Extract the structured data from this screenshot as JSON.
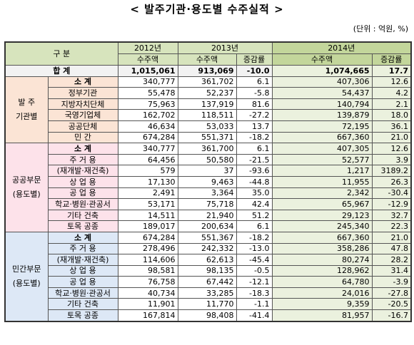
{
  "title": "< 발주기관·용도별 수주실적 >",
  "unit": "(단위 : 억원, %)",
  "header": {
    "division": "구 분",
    "years": [
      "2012년",
      "2013년",
      "2014년"
    ],
    "columns": [
      "수주액",
      "수주액",
      "증감률",
      "수주액",
      "증감률"
    ]
  },
  "total": {
    "label": "합 계",
    "values": [
      "1,015,061",
      "913,069",
      "-10.0",
      "1,074,665",
      "17.7"
    ]
  },
  "groups": [
    {
      "label": [
        "발 주",
        "기관별"
      ],
      "rows": [
        {
          "label": "소 계",
          "values": [
            "340,777",
            "361,702",
            "6.1",
            "407,306",
            "12.6"
          ]
        },
        {
          "label": "정부기관",
          "values": [
            "55,478",
            "52,237",
            "-5.8",
            "54,437",
            "4.2"
          ]
        },
        {
          "label": "지방자치단체",
          "values": [
            "75,963",
            "137,919",
            "81.6",
            "140,794",
            "2.1"
          ]
        },
        {
          "label": "국영기업체",
          "values": [
            "162,702",
            "118,511",
            "-27.2",
            "139,879",
            "18.0"
          ]
        },
        {
          "label": "공공단체",
          "values": [
            "46,634",
            "53,033",
            "13.7",
            "72,195",
            "36.1"
          ]
        },
        {
          "label": "민 간",
          "values": [
            "674,284",
            "551,371",
            "-18.2",
            "667,360",
            "21.0"
          ]
        }
      ]
    },
    {
      "label": [
        "공공부문",
        "(용도별)"
      ],
      "rows": [
        {
          "label": "소 계",
          "values": [
            "340,777",
            "361,700",
            "6.1",
            "407,305",
            "12.6"
          ]
        },
        {
          "label": "주 거 용",
          "values": [
            "64,456",
            "50,580",
            "-21.5",
            "52,577",
            "3.9"
          ]
        },
        {
          "label": "(재개발·재건축)",
          "values": [
            "579",
            "37",
            "-93.6",
            "1,217",
            "3189.2"
          ]
        },
        {
          "label": "상 업 용",
          "values": [
            "17,130",
            "9,463",
            "-44.8",
            "11,955",
            "26.3"
          ]
        },
        {
          "label": "공 업 용",
          "values": [
            "2,491",
            "3,364",
            "35.0",
            "2,342",
            "-30.4"
          ]
        },
        {
          "label": "학교·병원·관공서",
          "values": [
            "53,171",
            "75,718",
            "42.4",
            "65,967",
            "-12.9"
          ]
        },
        {
          "label": "기타 건축",
          "values": [
            "14,511",
            "21,940",
            "51.2",
            "29,123",
            "32.7"
          ]
        },
        {
          "label": "토목 공종",
          "values": [
            "189,017",
            "200,634",
            "6.1",
            "245,340",
            "22.3"
          ]
        }
      ]
    },
    {
      "label": [
        "민간부문",
        "(용도별)"
      ],
      "rows": [
        {
          "label": "소 계",
          "values": [
            "674,284",
            "551,367",
            "-18.2",
            "667,360",
            "21.0"
          ]
        },
        {
          "label": "주 거 용",
          "values": [
            "278,496",
            "242,332",
            "-13.0",
            "358,286",
            "47.8"
          ]
        },
        {
          "label": "(재개발·재건축)",
          "values": [
            "114,606",
            "62,613",
            "-45.4",
            "80,274",
            "28.2"
          ]
        },
        {
          "label": "상 업 용",
          "values": [
            "98,581",
            "98,135",
            "-0.5",
            "128,962",
            "31.4"
          ]
        },
        {
          "label": "공 업 용",
          "values": [
            "76,758",
            "67,442",
            "-12.1",
            "64,780",
            "-3.9"
          ]
        },
        {
          "label": "학교·병원·관공서",
          "values": [
            "40,734",
            "33,285",
            "-18.3",
            "24,016",
            "-27.8"
          ]
        },
        {
          "label": "기타 건축",
          "values": [
            "11,901",
            "11,770",
            "-1.1",
            "9,359",
            "-20.5"
          ]
        },
        {
          "label": "토목 공종",
          "values": [
            "167,814",
            "98,408",
            "-41.4",
            "81,957",
            "-16.7"
          ]
        }
      ]
    }
  ]
}
